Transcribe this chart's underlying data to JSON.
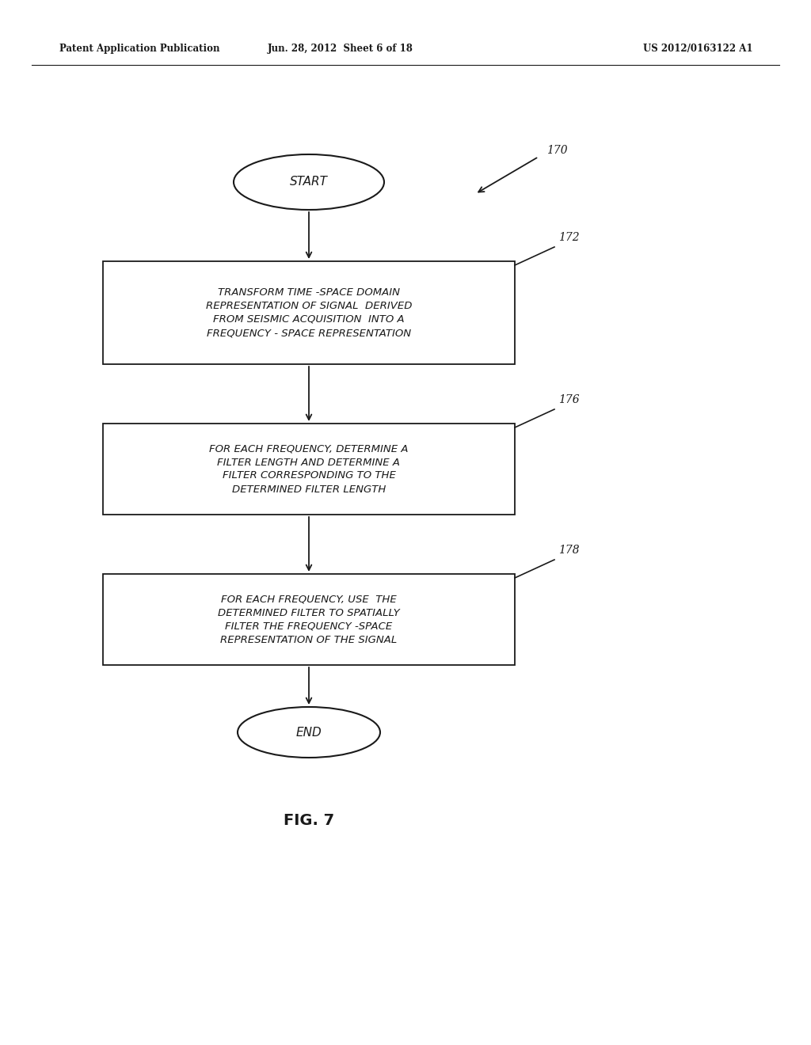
{
  "header_left": "Patent Application Publication",
  "header_mid": "Jun. 28, 2012  Sheet 6 of 18",
  "header_right": "US 2012/0163122 A1",
  "start_label": "START",
  "end_label": "END",
  "box1_label": "TRANSFORM TIME -SPACE DOMAIN\nREPRESENTATION OF SIGNAL  DERIVED\nFROM SEISMIC ACQUISITION  INTO A\nFREQUENCY - SPACE REPRESENTATION",
  "box1_ref": "172",
  "box2_label": "FOR EACH FREQUENCY, DETERMINE A\nFILTER LENGTH AND DETERMINE A\nFILTER CORRESPONDING TO THE\nDETERMINED FILTER LENGTH",
  "box2_ref": "176",
  "box3_label": "FOR EACH FREQUENCY, USE  THE\nDETERMINED FILTER TO SPATIALLY\nFILTER THE FREQUENCY -SPACE\nREPRESENTATION OF THE SIGNAL",
  "box3_ref": "178",
  "fig_label": "FIG. 7",
  "flow_ref": "170",
  "bg_color": "#ffffff",
  "line_color": "#1a1a1a",
  "text_color": "#1a1a1a"
}
